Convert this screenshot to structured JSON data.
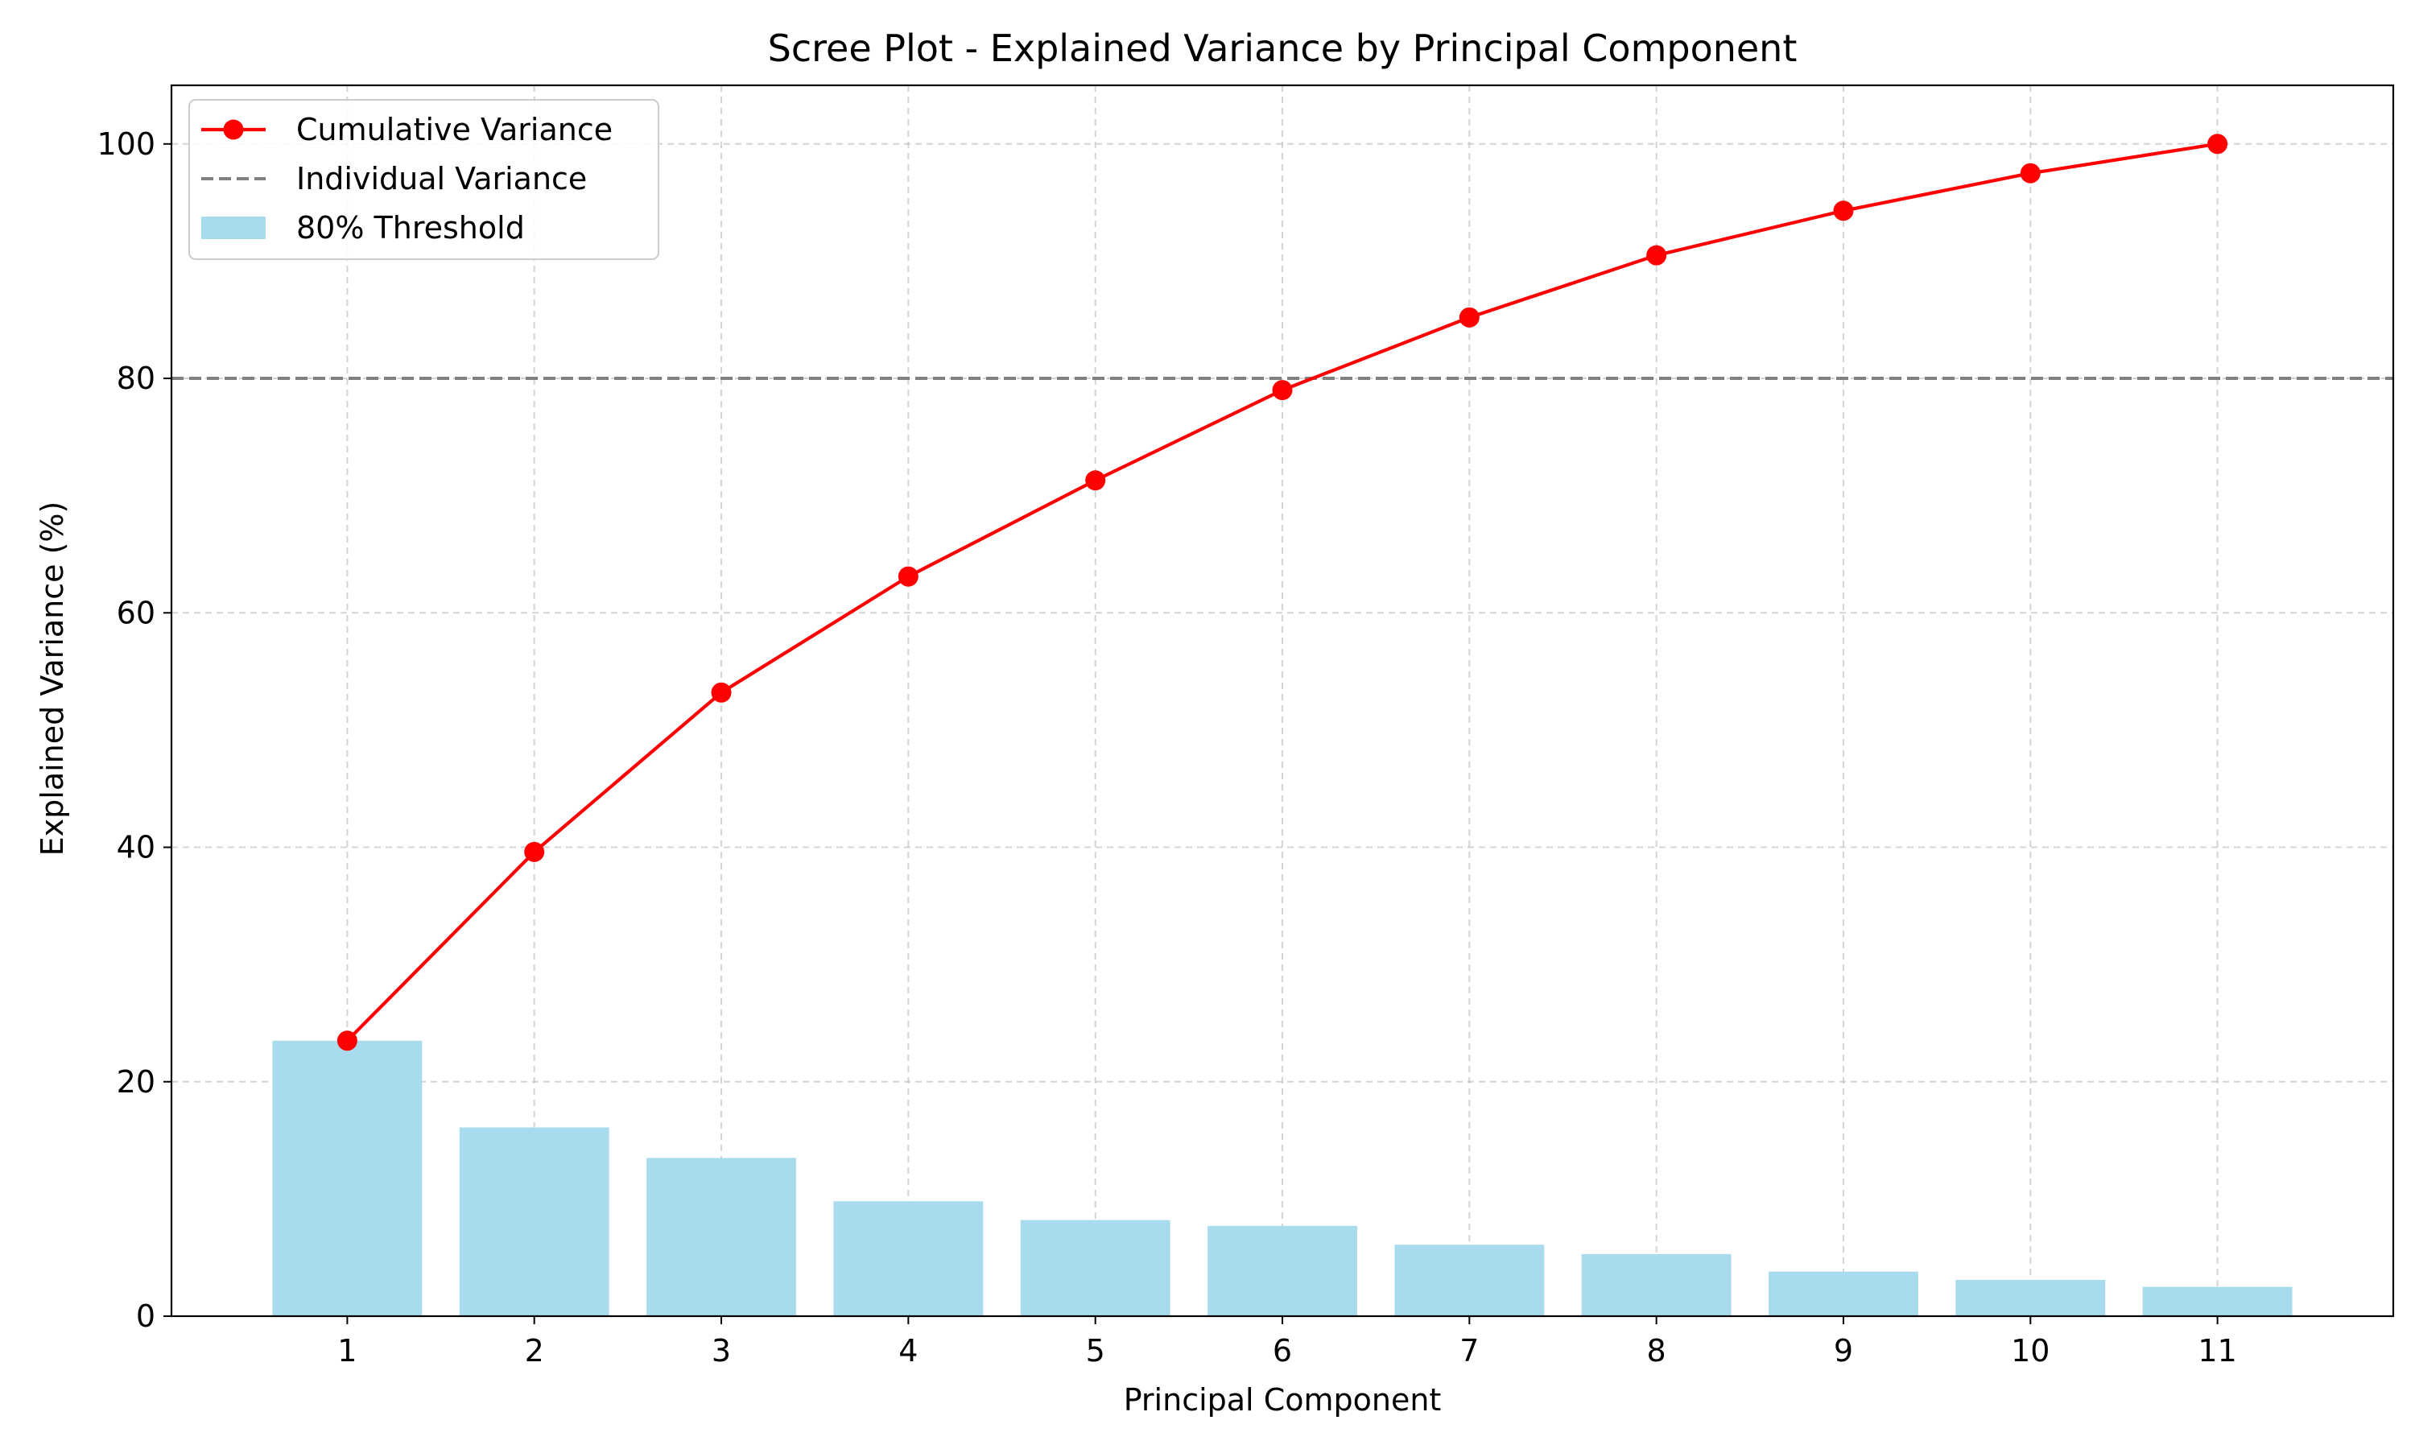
{
  "chart_data": {
    "type": "bar",
    "title": "Scree Plot - Explained Variance by Principal Component",
    "xlabel": "Principal Component",
    "ylabel": "Explained Variance (%)",
    "categories": [
      "1",
      "2",
      "3",
      "4",
      "5",
      "6",
      "7",
      "8",
      "9",
      "10",
      "11"
    ],
    "x": [
      1,
      2,
      3,
      4,
      5,
      6,
      7,
      8,
      9,
      10,
      11
    ],
    "xlim": [
      0.06,
      11.94
    ],
    "ylim": [
      0,
      105
    ],
    "yticks": [
      0,
      20,
      40,
      60,
      80,
      100
    ],
    "grid": true,
    "legend_position": "upper-left",
    "series": [
      {
        "name": "80% Threshold",
        "kind": "bar",
        "color": "#a9dbee",
        "values": [
          23.5,
          16.1,
          13.5,
          9.8,
          8.2,
          7.7,
          6.1,
          5.3,
          3.8,
          3.1,
          2.5
        ]
      },
      {
        "name": "Cumulative Variance",
        "kind": "line",
        "marker": "circle",
        "color": "#ff0000",
        "values": [
          23.5,
          39.6,
          53.2,
          63.1,
          71.3,
          79.0,
          85.2,
          90.5,
          94.3,
          97.5,
          100.0
        ]
      },
      {
        "name": "Individual Variance",
        "kind": "hline",
        "linestyle": "dashed",
        "color": "#808080",
        "value": 80
      }
    ],
    "legend": [
      {
        "label": "Cumulative Variance",
        "kind": "line-marker",
        "color": "#ff0000"
      },
      {
        "label": "Individual Variance",
        "kind": "dashed-line",
        "color": "#808080"
      },
      {
        "label": "80% Threshold",
        "kind": "patch",
        "color": "#a9dbee"
      }
    ]
  }
}
